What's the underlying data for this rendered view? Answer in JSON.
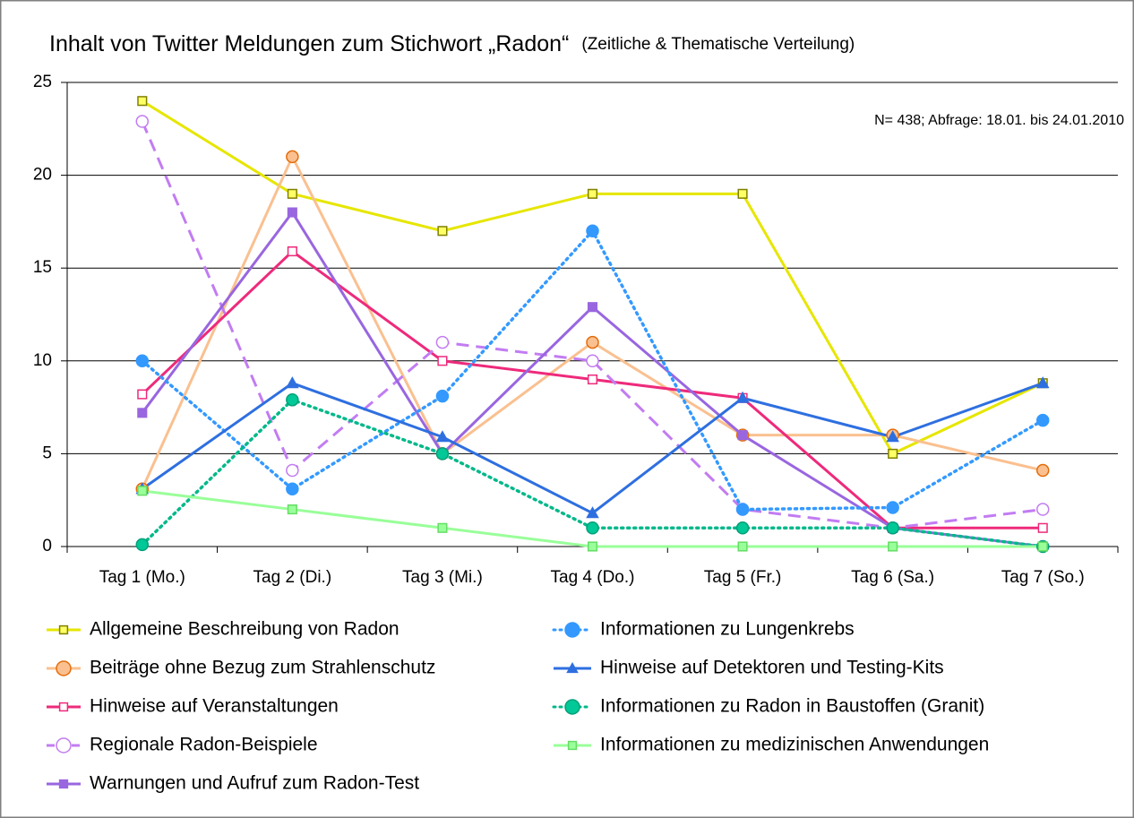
{
  "chart_data": {
    "type": "line",
    "title": "Inhalt von Twitter Meldungen zum Stichwort „Radon“",
    "subtitle": "(Zeitliche & Thematische Verteilung)",
    "annotation": "N= 438; Abfrage: 18.01. bis 24.01.2010",
    "categories": [
      "Tag 1 (Mo.)",
      "Tag 2 (Di.)",
      "Tag 3 (Mi.)",
      "Tag 4 (Do.)",
      "Tag 5 (Fr.)",
      "Tag 6 (Sa.)",
      "Tag 7 (So.)"
    ],
    "ylim": [
      0,
      25
    ],
    "yticks": [
      0,
      5,
      10,
      15,
      20,
      25
    ],
    "grid": true,
    "series": [
      {
        "name": "Allgemeine Beschreibung von Radon",
        "color": "#e6e600",
        "marker": "square",
        "marker_fill": "#ffff66",
        "marker_stroke": "#808000",
        "style": "solid",
        "values": [
          24,
          19,
          17,
          19,
          19,
          5,
          8.8
        ]
      },
      {
        "name": "Beiträge ohne Bezug zum Strahlenschutz",
        "color": "#fac090",
        "marker": "circle",
        "marker_fill": "#fac090",
        "marker_stroke": "#e46c0a",
        "style": "solid",
        "values": [
          3.1,
          21,
          5,
          11,
          6,
          6,
          4.1
        ]
      },
      {
        "name": "Hinweise auf Veranstaltungen",
        "color": "#ee2a7b",
        "marker": "square",
        "marker_fill": "#ffffff",
        "marker_stroke": "#ee2a7b",
        "style": "solid",
        "values": [
          8.2,
          15.9,
          10,
          9,
          8,
          1,
          1
        ]
      },
      {
        "name": "Regionale Radon-Beispiele",
        "color": "#c27cf2",
        "marker": "circle",
        "marker_fill": "#ffffff",
        "marker_stroke": "#c27cf2",
        "style": "dashed",
        "values": [
          22.9,
          4.1,
          11,
          10,
          2,
          1,
          2
        ]
      },
      {
        "name": "Warnungen und Aufruf zum Radon-Test",
        "color": "#9966e0",
        "marker": "square",
        "marker_fill": "#9966e0",
        "marker_stroke": "#9966e0",
        "style": "solid",
        "values": [
          7.2,
          18,
          5,
          12.9,
          6,
          1,
          0
        ]
      },
      {
        "name": "Informationen zu Lungenkrebs",
        "color": "#3399ff",
        "marker": "circle",
        "marker_fill": "#3399ff",
        "marker_stroke": "#3399ff",
        "style": "dotted",
        "values": [
          10,
          3.1,
          8.1,
          17,
          2,
          2.1,
          6.8
        ]
      },
      {
        "name": "Hinweise auf Detektoren und Testing-Kits",
        "color": "#2e6fe0",
        "marker": "triangle",
        "marker_fill": "#2e6fe0",
        "marker_stroke": "#2e6fe0",
        "style": "solid",
        "values": [
          3.1,
          8.8,
          5.9,
          1.8,
          8,
          5.9,
          8.8
        ]
      },
      {
        "name": "Informationen zu Radon in Baustoffen (Granit)",
        "color": "#00b88a",
        "marker": "circle",
        "marker_fill": "#00c896",
        "marker_stroke": "#00a07a",
        "style": "dotted",
        "values": [
          0.1,
          7.9,
          5,
          1,
          1,
          1,
          0
        ]
      },
      {
        "name": "Informationen zu medizinischen Anwendungen",
        "color": "#99ff99",
        "marker": "square",
        "marker_fill": "#99ff99",
        "marker_stroke": "#66dd66",
        "style": "solid",
        "values": [
          3,
          2,
          1,
          0,
          0,
          0,
          0
        ]
      }
    ]
  }
}
